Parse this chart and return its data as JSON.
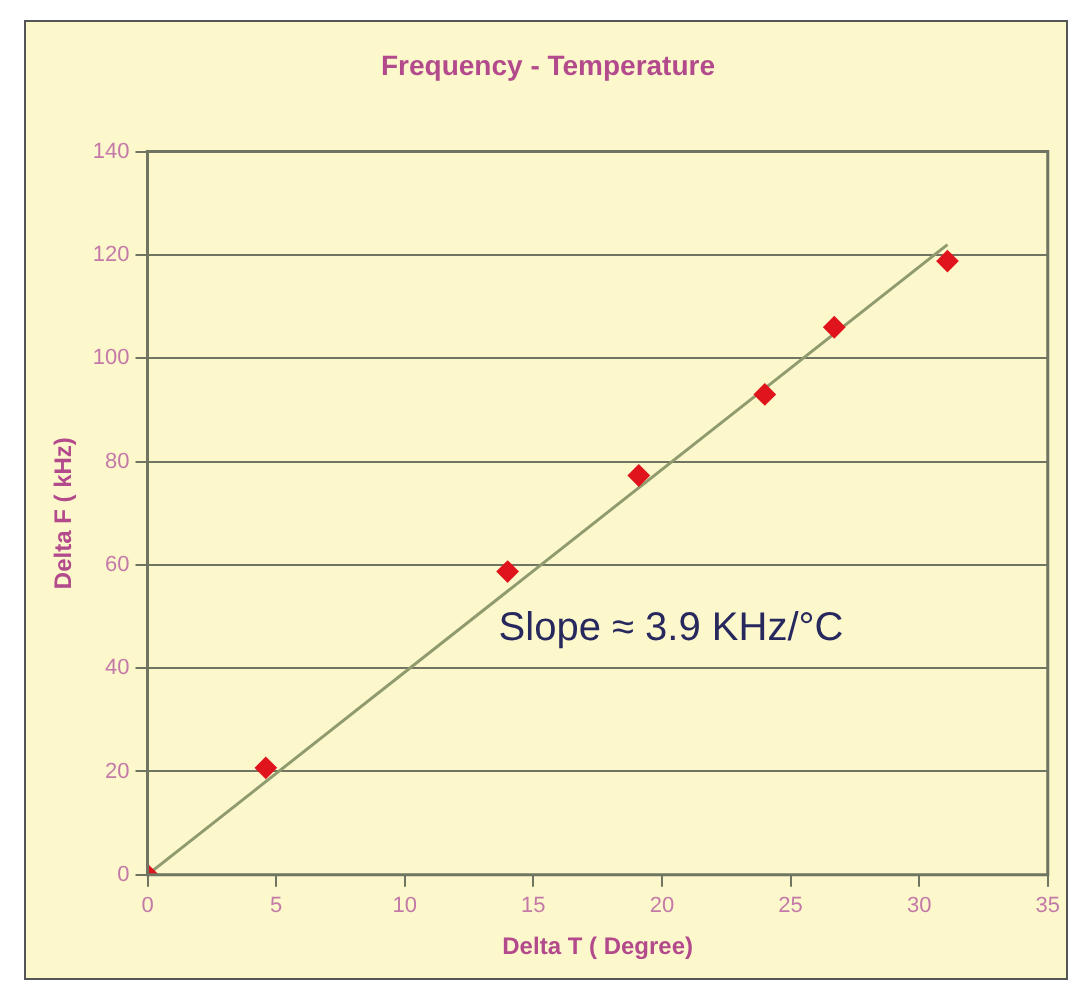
{
  "chart_data": {
    "type": "scatter",
    "title": "Frequency - Temperature",
    "xlabel": "Delta T ( Degree)",
    "ylabel": "Delta F ( kHz)",
    "series": [
      {
        "marker": "diamond",
        "color": "#e0141c",
        "x": [
          0,
          4.6,
          14,
          19.1,
          24,
          26.7,
          31.1
        ],
        "values": [
          0,
          20.7,
          58.7,
          77.3,
          93,
          106,
          118.8
        ]
      },
      {
        "type": "line",
        "marker": "none",
        "color": "#8f9a6e",
        "x": [
          0,
          31.1
        ],
        "values": [
          0,
          122
        ]
      }
    ],
    "xlim": [
      0,
      35
    ],
    "xticks": [
      0,
      5,
      10,
      15,
      20,
      25,
      30,
      35
    ],
    "ylim": [
      0,
      140
    ],
    "yticks": [
      0,
      20,
      40,
      60,
      80,
      100,
      120,
      140
    ],
    "grid": "y",
    "legend": false,
    "annotations": [
      "Slope ≈ 3.9 KHz/°C"
    ]
  }
}
